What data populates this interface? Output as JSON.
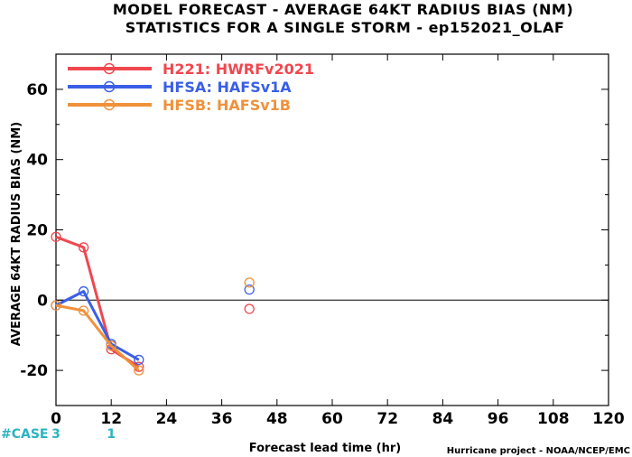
{
  "chart_data": {
    "type": "line",
    "title": "MODEL FORECAST - AVERAGE 64KT RADIUS BIAS (NM)",
    "subtitle": "STATISTICS FOR A SINGLE STORM - ep152021_OLAF",
    "xlabel": "Forecast lead time (hr)",
    "ylabel": "AVERAGE 64KT RADIUS BIAS (NM)",
    "xlim": [
      0,
      120
    ],
    "ylim": [
      -30,
      70
    ],
    "xticks": [
      0,
      12,
      24,
      36,
      48,
      60,
      72,
      84,
      96,
      108,
      120
    ],
    "yticks": [
      -20,
      0,
      20,
      40,
      60
    ],
    "zero_line": true,
    "grid": false,
    "legend_position": "top-left",
    "series": [
      {
        "name": "H221: HWRFv2021",
        "color": "#f0474f",
        "points": [
          [
            0,
            18
          ],
          [
            6,
            15
          ],
          [
            12,
            -14
          ],
          [
            18,
            -19
          ],
          [
            42,
            -2.5
          ]
        ],
        "connect_until_index": 3
      },
      {
        "name": "HFSA: HAFSv1A",
        "color": "#3a5fe6",
        "points": [
          [
            0,
            -1.5
          ],
          [
            6,
            2.5
          ],
          [
            12,
            -12.5
          ],
          [
            18,
            -17
          ],
          [
            42,
            3
          ]
        ],
        "connect_until_index": 3
      },
      {
        "name": "HFSB: HAFSv1B",
        "color": "#f0913a",
        "points": [
          [
            0,
            -1.5
          ],
          [
            6,
            -3
          ],
          [
            12,
            -13
          ],
          [
            18,
            -20
          ],
          [
            42,
            5
          ]
        ],
        "connect_until_index": 3
      }
    ],
    "case_counts": {
      "label": "#CASE",
      "values": [
        {
          "x": 0,
          "text": "3"
        },
        {
          "x": 12,
          "text": "1"
        }
      ]
    }
  },
  "footer": {
    "credit": "Hurricane project - NOAA/NCEP/EMC"
  }
}
